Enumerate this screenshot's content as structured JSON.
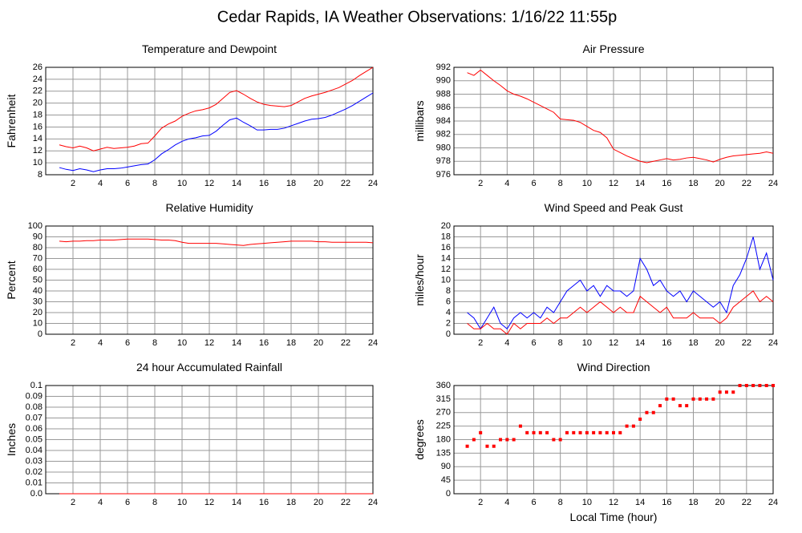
{
  "title": "Cedar Rapids, IA Weather Observations: 1/16/22 11:55p",
  "chart_data": [
    {
      "type": "line",
      "title": "Temperature and Dewpoint",
      "ylabel": "Fahrenheit",
      "x": [
        1,
        1.5,
        2,
        2.5,
        3,
        3.5,
        4,
        4.5,
        5,
        5.5,
        6,
        6.5,
        7,
        7.5,
        8,
        8.5,
        9,
        9.5,
        10,
        10.5,
        11,
        11.5,
        12,
        12.5,
        13,
        13.5,
        14,
        14.5,
        15,
        15.5,
        16,
        16.5,
        17,
        17.5,
        18,
        18.5,
        19,
        19.5,
        20,
        20.5,
        21,
        21.5,
        22,
        22.5,
        23,
        23.5,
        24
      ],
      "series": [
        {
          "color": "#ff0000",
          "values": [
            13,
            12.7,
            12.5,
            12.8,
            12.5,
            12,
            12.3,
            12.6,
            12.4,
            12.5,
            12.6,
            12.8,
            13.2,
            13.3,
            14.5,
            15.8,
            16.5,
            17,
            17.8,
            18.3,
            18.7,
            18.9,
            19.2,
            19.8,
            20.8,
            21.8,
            22.1,
            21.5,
            20.8,
            20.2,
            19.8,
            19.6,
            19.5,
            19.4,
            19.6,
            20.2,
            20.8,
            21.2,
            21.5,
            21.8,
            22.2,
            22.6,
            23.2,
            23.8,
            24.6,
            25.3,
            26
          ]
        },
        {
          "color": "#0000ff",
          "values": [
            9.2,
            8.9,
            8.7,
            9,
            8.8,
            8.5,
            8.8,
            9,
            9,
            9.1,
            9.3,
            9.5,
            9.7,
            9.8,
            10.5,
            11.5,
            12.2,
            13,
            13.6,
            14,
            14.2,
            14.5,
            14.6,
            15.3,
            16.3,
            17.2,
            17.5,
            16.8,
            16.2,
            15.5,
            15.5,
            15.6,
            15.6,
            15.8,
            16.2,
            16.6,
            17,
            17.3,
            17.4,
            17.6,
            18,
            18.5,
            19,
            19.6,
            20.3,
            21,
            21.7
          ]
        }
      ],
      "xlim": [
        0,
        24
      ],
      "xticks": [
        2,
        4,
        6,
        8,
        10,
        12,
        14,
        16,
        18,
        20,
        22,
        24
      ],
      "ylim": [
        8,
        26
      ],
      "yticks": [
        8,
        10,
        12,
        14,
        16,
        18,
        20,
        22,
        24,
        26
      ],
      "grid": true
    },
    {
      "type": "line",
      "title": "Air Pressure",
      "ylabel": "millibars",
      "x": [
        1,
        1.5,
        2,
        2.5,
        3,
        3.5,
        4,
        4.5,
        5,
        5.5,
        6,
        6.5,
        7,
        7.5,
        8,
        8.5,
        9,
        9.5,
        10,
        10.5,
        11,
        11.5,
        12,
        12.5,
        13,
        13.5,
        14,
        14.5,
        15,
        15.5,
        16,
        16.5,
        17,
        17.5,
        18,
        18.5,
        19,
        19.5,
        20,
        20.5,
        21,
        21.5,
        22,
        22.5,
        23,
        23.5,
        24
      ],
      "series": [
        {
          "color": "#ff0000",
          "values": [
            991.2,
            990.8,
            991.6,
            990.8,
            990,
            989.3,
            988.5,
            988,
            987.7,
            987.3,
            986.8,
            986.3,
            985.8,
            985.3,
            984.3,
            984.2,
            984.1,
            983.8,
            983.2,
            982.6,
            982.3,
            981.5,
            979.8,
            979.3,
            978.8,
            978.4,
            978,
            977.8,
            978,
            978.2,
            978.4,
            978.2,
            978.3,
            978.5,
            978.6,
            978.4,
            978.2,
            977.9,
            978.3,
            978.6,
            978.8,
            978.9,
            979,
            979.1,
            979.2,
            979.4,
            979.2
          ]
        }
      ],
      "xlim": [
        0,
        24
      ],
      "xticks": [
        2,
        4,
        6,
        8,
        10,
        12,
        14,
        16,
        18,
        20,
        22,
        24
      ],
      "ylim": [
        976,
        992
      ],
      "yticks": [
        976,
        978,
        980,
        982,
        984,
        986,
        988,
        990,
        992
      ],
      "grid": true
    },
    {
      "type": "line",
      "title": "Relative Humidity",
      "ylabel": "Percent",
      "x": [
        1,
        1.5,
        2,
        2.5,
        3,
        3.5,
        4,
        4.5,
        5,
        5.5,
        6,
        6.5,
        7,
        7.5,
        8,
        8.5,
        9,
        9.5,
        10,
        10.5,
        11,
        11.5,
        12,
        12.5,
        13,
        13.5,
        14,
        14.5,
        15,
        15.5,
        16,
        16.5,
        17,
        17.5,
        18,
        18.5,
        19,
        19.5,
        20,
        20.5,
        21,
        21.5,
        22,
        22.5,
        23,
        23.5,
        24
      ],
      "series": [
        {
          "color": "#ff0000",
          "values": [
            86,
            85.5,
            86,
            86,
            86.5,
            86.5,
            87,
            87,
            87,
            87.5,
            88,
            88,
            88,
            88,
            87.5,
            87,
            87,
            86.5,
            85,
            84,
            84,
            84,
            84,
            84,
            83.5,
            83,
            82.5,
            82,
            83,
            83.5,
            84,
            84.5,
            85,
            85.5,
            86,
            86,
            86,
            86,
            85.5,
            85.5,
            85,
            85,
            85,
            85,
            85,
            85,
            84.5
          ]
        }
      ],
      "xlim": [
        0,
        24
      ],
      "xticks": [
        2,
        4,
        6,
        8,
        10,
        12,
        14,
        16,
        18,
        20,
        22,
        24
      ],
      "ylim": [
        0,
        100
      ],
      "yticks": [
        0,
        10,
        20,
        30,
        40,
        50,
        60,
        70,
        80,
        90,
        100
      ],
      "grid": true
    },
    {
      "type": "line",
      "title": "Wind Speed and Peak Gust",
      "ylabel": "miles/hour",
      "x": [
        1,
        1.5,
        2,
        2.5,
        3,
        3.5,
        4,
        4.5,
        5,
        5.5,
        6,
        6.5,
        7,
        7.5,
        8,
        8.5,
        9,
        9.5,
        10,
        10.5,
        11,
        11.5,
        12,
        12.5,
        13,
        13.5,
        14,
        14.5,
        15,
        15.5,
        16,
        16.5,
        17,
        17.5,
        18,
        18.5,
        19,
        19.5,
        20,
        20.5,
        21,
        21.5,
        22,
        22.5,
        23,
        23.5,
        24
      ],
      "series": [
        {
          "color": "#0000ff",
          "values": [
            4,
            3,
            1,
            3,
            5,
            2,
            1,
            3,
            4,
            3,
            4,
            3,
            5,
            4,
            6,
            8,
            9,
            10,
            8,
            9,
            7,
            9,
            8,
            8,
            7,
            8,
            14,
            12,
            9,
            10,
            8,
            7,
            8,
            6,
            8,
            7,
            6,
            5,
            6,
            4,
            9,
            11,
            14,
            18,
            12,
            15,
            10
          ]
        },
        {
          "color": "#ff0000",
          "values": [
            2,
            1,
            1,
            2,
            1,
            1,
            0,
            2,
            1,
            2,
            2,
            2,
            3,
            2,
            3,
            3,
            4,
            5,
            4,
            5,
            6,
            5,
            4,
            5,
            4,
            4,
            7,
            6,
            5,
            4,
            5,
            3,
            3,
            3,
            4,
            3,
            3,
            3,
            2,
            3,
            5,
            6,
            7,
            8,
            6,
            7,
            6
          ]
        }
      ],
      "xlim": [
        0,
        24
      ],
      "xticks": [
        2,
        4,
        6,
        8,
        10,
        12,
        14,
        16,
        18,
        20,
        22,
        24
      ],
      "ylim": [
        0,
        20
      ],
      "yticks": [
        0,
        2,
        4,
        6,
        8,
        10,
        12,
        14,
        16,
        18,
        20
      ],
      "grid": true
    },
    {
      "type": "line",
      "title": "24 hour Accumulated Rainfall",
      "ylabel": "Inches",
      "x": [
        1,
        24
      ],
      "series": [
        {
          "color": "#ff0000",
          "values": [
            0,
            0
          ]
        }
      ],
      "xlim": [
        0,
        24
      ],
      "xticks": [
        2,
        4,
        6,
        8,
        10,
        12,
        14,
        16,
        18,
        20,
        22,
        24
      ],
      "ylim": [
        0,
        0.1
      ],
      "yticks": [
        {
          "value": 0,
          "label": "0.0"
        },
        0.01,
        0.02,
        0.03,
        0.04,
        0.05,
        0.06,
        0.07,
        0.08,
        0.09,
        0.1
      ],
      "grid": true
    },
    {
      "type": "scatter",
      "title": "Wind Direction",
      "ylabel": "degrees",
      "xlabel": "Local Time (hour)",
      "x": [
        1,
        1.5,
        2,
        2.5,
        3,
        3.5,
        4,
        4.5,
        5,
        5.5,
        6,
        6.5,
        7,
        7.5,
        8,
        8.5,
        9,
        9.5,
        10,
        10.5,
        11,
        11.5,
        12,
        12.5,
        13,
        13.5,
        14,
        14.5,
        15,
        15.5,
        16,
        16.5,
        17,
        17.5,
        18,
        18.5,
        19,
        19.5,
        20,
        20.5,
        21,
        21.5,
        22,
        22.5,
        23,
        23.5,
        24
      ],
      "series": [
        {
          "color": "#ff0000",
          "values": [
            158,
            180,
            203,
            158,
            158,
            180,
            180,
            180,
            225,
            203,
            203,
            203,
            203,
            180,
            180,
            203,
            203,
            203,
            203,
            203,
            203,
            203,
            203,
            203,
            225,
            225,
            248,
            270,
            270,
            293,
            315,
            315,
            293,
            293,
            315,
            315,
            315,
            315,
            338,
            338,
            338,
            360,
            360,
            360,
            360,
            360,
            360
          ]
        }
      ],
      "xlim": [
        0,
        24
      ],
      "xticks": [
        2,
        4,
        6,
        8,
        10,
        12,
        14,
        16,
        18,
        20,
        22,
        24
      ],
      "ylim": [
        0,
        360
      ],
      "yticks": [
        0,
        45,
        90,
        135,
        180,
        225,
        270,
        315,
        360
      ],
      "grid": true
    }
  ]
}
